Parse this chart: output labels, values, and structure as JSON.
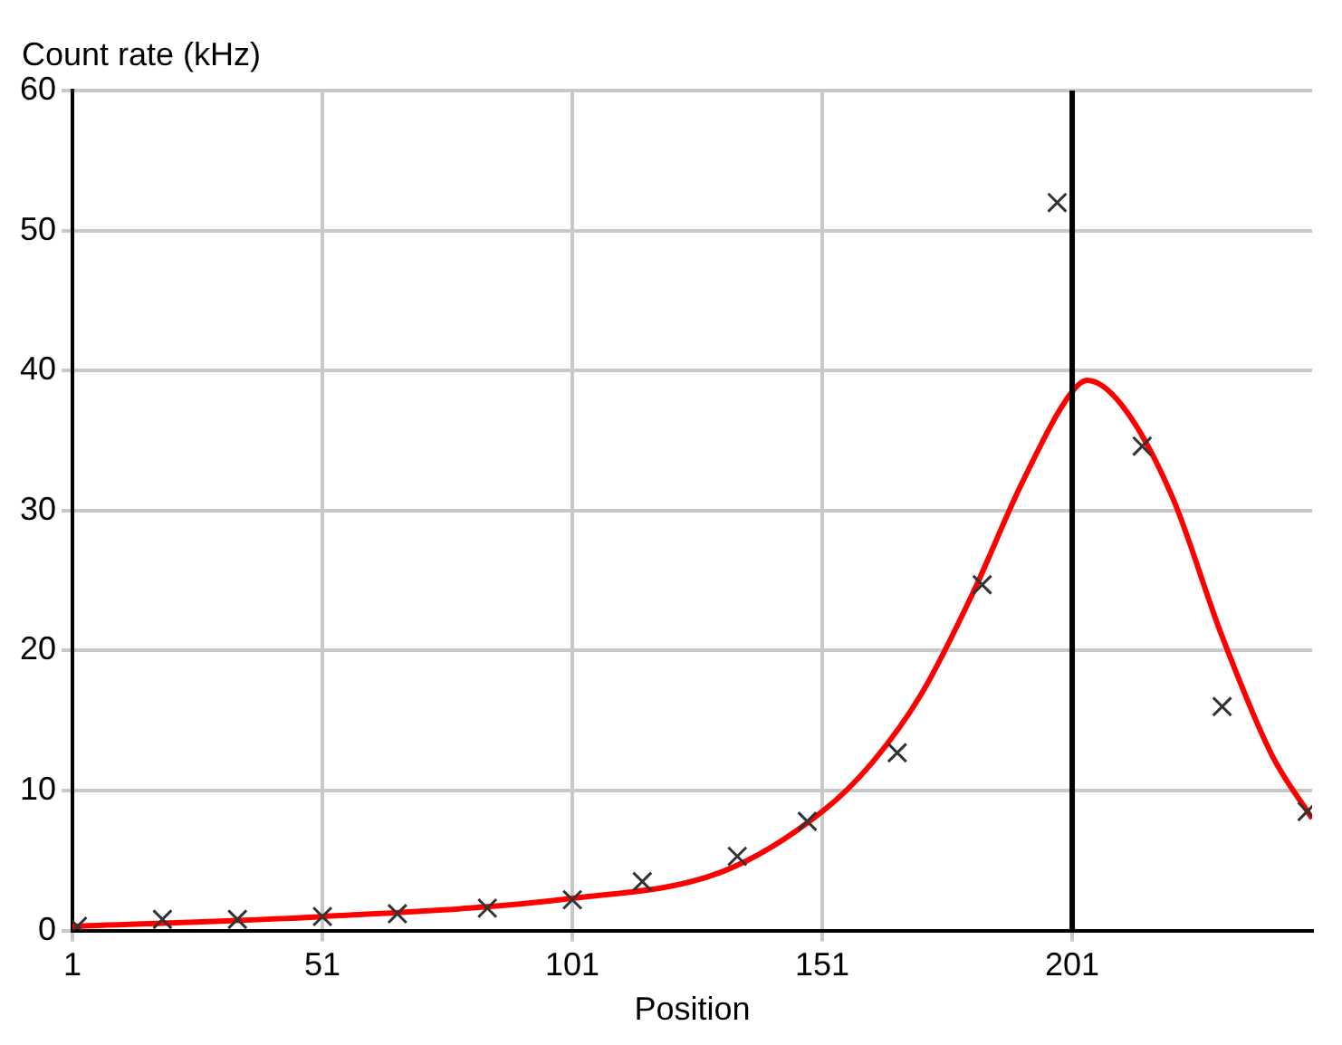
{
  "chart_data": {
    "type": "scatter",
    "xlabel": "Position",
    "ylabel": "Count rate (kHz)",
    "xlim": [
      1,
      249
    ],
    "xticks": [
      1,
      51,
      101,
      151,
      201
    ],
    "ylim": [
      0,
      60
    ],
    "yticks": [
      0,
      10,
      20,
      30,
      40,
      50,
      60
    ],
    "grid": true,
    "legend": false,
    "series": [
      {
        "type": "scatter",
        "marker": "cross",
        "color": "#333333",
        "x": [
          2,
          19,
          34,
          51,
          66,
          84,
          101,
          115,
          134,
          148,
          166,
          183,
          198,
          215,
          231,
          248
        ],
        "values": [
          0.3,
          0.8,
          0.8,
          1.0,
          1.2,
          1.6,
          2.2,
          3.5,
          5.3,
          7.8,
          12.7,
          24.7,
          52,
          34.6,
          16,
          8.5
        ]
      },
      {
        "type": "line",
        "marker": "none",
        "color": "#ff0000",
        "x": [
          1,
          51,
          101,
          131,
          151,
          161,
          171,
          181,
          191,
          201,
          204,
          211,
          221,
          231,
          241,
          249
        ],
        "values": [
          0.3,
          1.0,
          2.3,
          4.2,
          8.5,
          12,
          17,
          24,
          32,
          38.5,
          39.3,
          37.5,
          31,
          21,
          12.5,
          8
        ]
      }
    ],
    "ref_lines": [
      {
        "axis": "x",
        "value": 201,
        "color": "#000000"
      }
    ]
  }
}
